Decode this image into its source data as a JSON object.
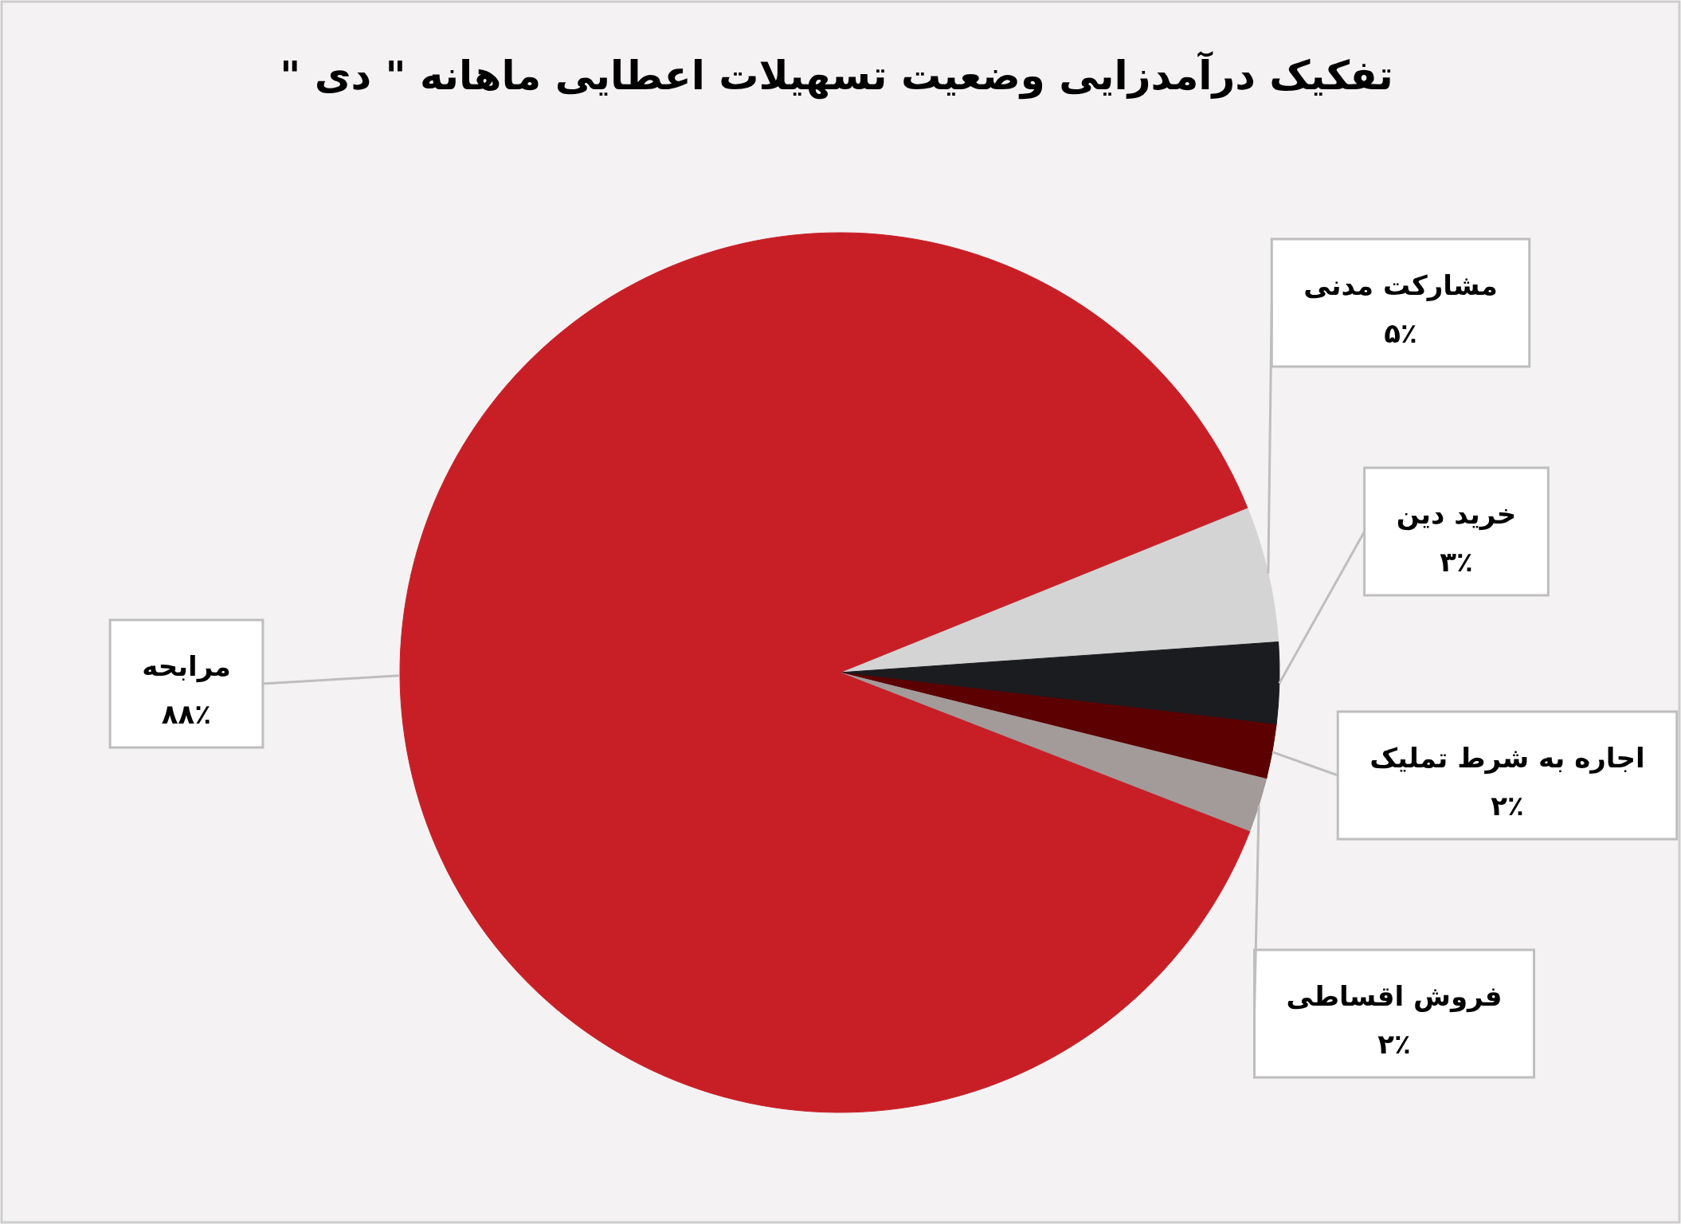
{
  "chart_data": {
    "type": "pie",
    "title": "تفکیک درآمدزایی وضعیت تسهیلات اعطایی ماهانه \" دی \"",
    "categories": [
      "مشارکت مدنی",
      "خرید دین",
      "اجاره به شرط تملیک",
      "فروش اقساطی",
      "مرابحه"
    ],
    "values": [
      5,
      3,
      2,
      2,
      88
    ],
    "colors": [
      "#d4d4d4",
      "#1b1c20",
      "#5c0002",
      "#a39b99",
      "#c81f27"
    ],
    "value_labels": [
      "۵٪",
      "۳٪",
      "۲٪",
      "۲٪",
      "۸۸٪"
    ]
  }
}
